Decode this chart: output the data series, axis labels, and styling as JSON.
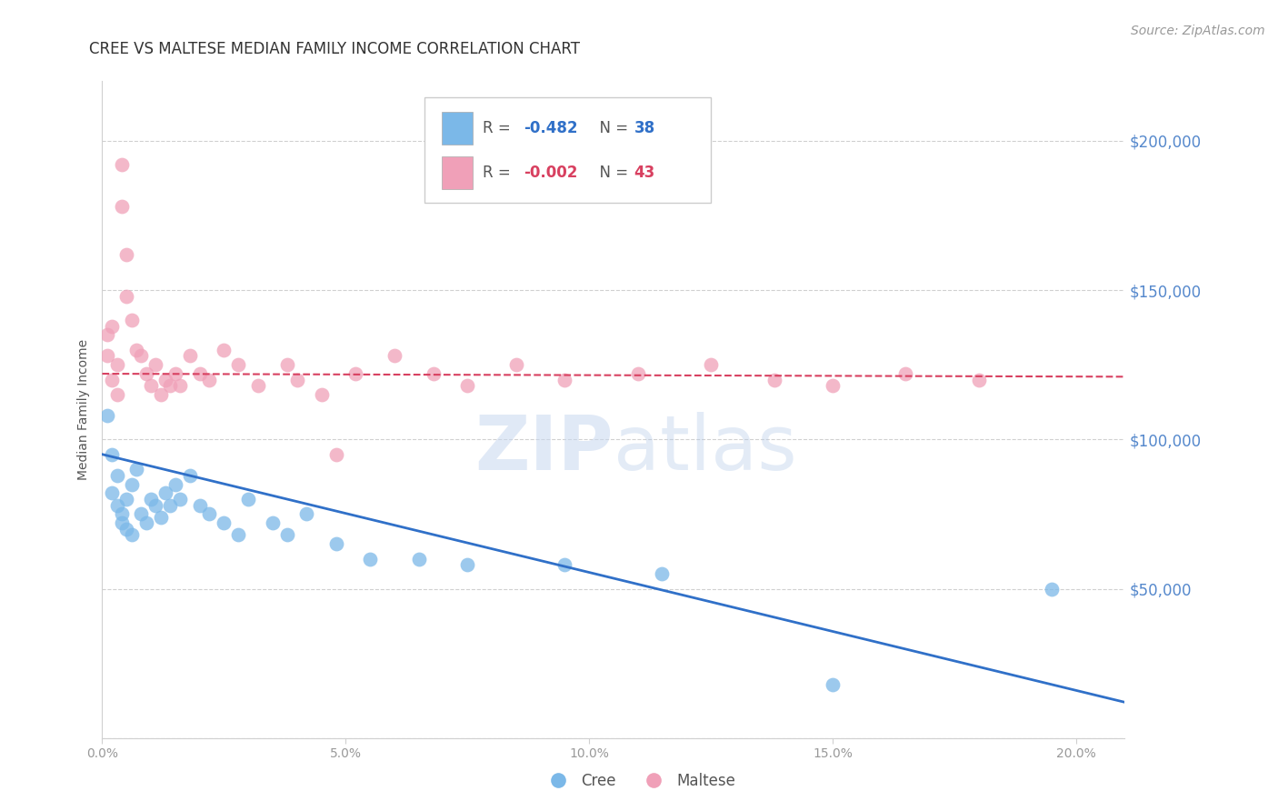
{
  "title": "CREE VS MALTESE MEDIAN FAMILY INCOME CORRELATION CHART",
  "source": "Source: ZipAtlas.com",
  "ylabel": "Median Family Income",
  "xlim": [
    0.0,
    0.21
  ],
  "ylim": [
    0,
    220000
  ],
  "yticks": [
    0,
    50000,
    100000,
    150000,
    200000
  ],
  "ytick_labels": [
    "",
    "$50,000",
    "$100,000",
    "$150,000",
    "$200,000"
  ],
  "xtick_labels": [
    "0.0%",
    "",
    "",
    "",
    "",
    "5.0%",
    "",
    "",
    "",
    "",
    "10.0%",
    "",
    "",
    "",
    "",
    "15.0%",
    "",
    "",
    "",
    "",
    "20.0%"
  ],
  "xticks": [
    0.0,
    0.01,
    0.02,
    0.03,
    0.04,
    0.05,
    0.06,
    0.07,
    0.08,
    0.09,
    0.1,
    0.11,
    0.12,
    0.13,
    0.14,
    0.15,
    0.16,
    0.17,
    0.18,
    0.19,
    0.2
  ],
  "cree_color": "#7bb8e8",
  "maltese_color": "#f0a0b8",
  "cree_line_color": "#3070c8",
  "maltese_line_color": "#d84060",
  "grid_color": "#d0d0d0",
  "right_label_color": "#5588cc",
  "background_color": "#ffffff",
  "cree_points_x": [
    0.001,
    0.002,
    0.002,
    0.003,
    0.003,
    0.004,
    0.004,
    0.005,
    0.005,
    0.006,
    0.006,
    0.007,
    0.008,
    0.009,
    0.01,
    0.011,
    0.012,
    0.013,
    0.014,
    0.015,
    0.016,
    0.018,
    0.02,
    0.022,
    0.025,
    0.028,
    0.03,
    0.035,
    0.038,
    0.042,
    0.048,
    0.055,
    0.065,
    0.075,
    0.095,
    0.115,
    0.15,
    0.195
  ],
  "cree_points_y": [
    108000,
    95000,
    82000,
    78000,
    88000,
    75000,
    72000,
    80000,
    70000,
    85000,
    68000,
    90000,
    75000,
    72000,
    80000,
    78000,
    74000,
    82000,
    78000,
    85000,
    80000,
    88000,
    78000,
    75000,
    72000,
    68000,
    80000,
    72000,
    68000,
    75000,
    65000,
    60000,
    60000,
    58000,
    58000,
    55000,
    18000,
    50000
  ],
  "maltese_points_x": [
    0.001,
    0.001,
    0.002,
    0.002,
    0.003,
    0.003,
    0.004,
    0.004,
    0.005,
    0.005,
    0.006,
    0.007,
    0.008,
    0.009,
    0.01,
    0.011,
    0.012,
    0.013,
    0.014,
    0.015,
    0.016,
    0.018,
    0.02,
    0.022,
    0.025,
    0.028,
    0.032,
    0.038,
    0.04,
    0.045,
    0.048,
    0.052,
    0.06,
    0.068,
    0.075,
    0.085,
    0.095,
    0.11,
    0.125,
    0.138,
    0.15,
    0.165,
    0.18
  ],
  "maltese_points_y": [
    135000,
    128000,
    120000,
    138000,
    115000,
    125000,
    192000,
    178000,
    162000,
    148000,
    140000,
    130000,
    128000,
    122000,
    118000,
    125000,
    115000,
    120000,
    118000,
    122000,
    118000,
    128000,
    122000,
    120000,
    130000,
    125000,
    118000,
    125000,
    120000,
    115000,
    95000,
    122000,
    128000,
    122000,
    118000,
    125000,
    120000,
    122000,
    125000,
    120000,
    118000,
    122000,
    120000
  ],
  "cree_trendline_x": [
    0.0,
    0.21
  ],
  "cree_trendline_y": [
    95000,
    12000
  ],
  "maltese_trendline_x": [
    0.0,
    0.21
  ],
  "maltese_trendline_y": [
    122000,
    121000
  ],
  "title_fontsize": 12,
  "axis_label_fontsize": 10,
  "tick_fontsize": 10,
  "legend_fontsize": 12,
  "source_fontsize": 10
}
